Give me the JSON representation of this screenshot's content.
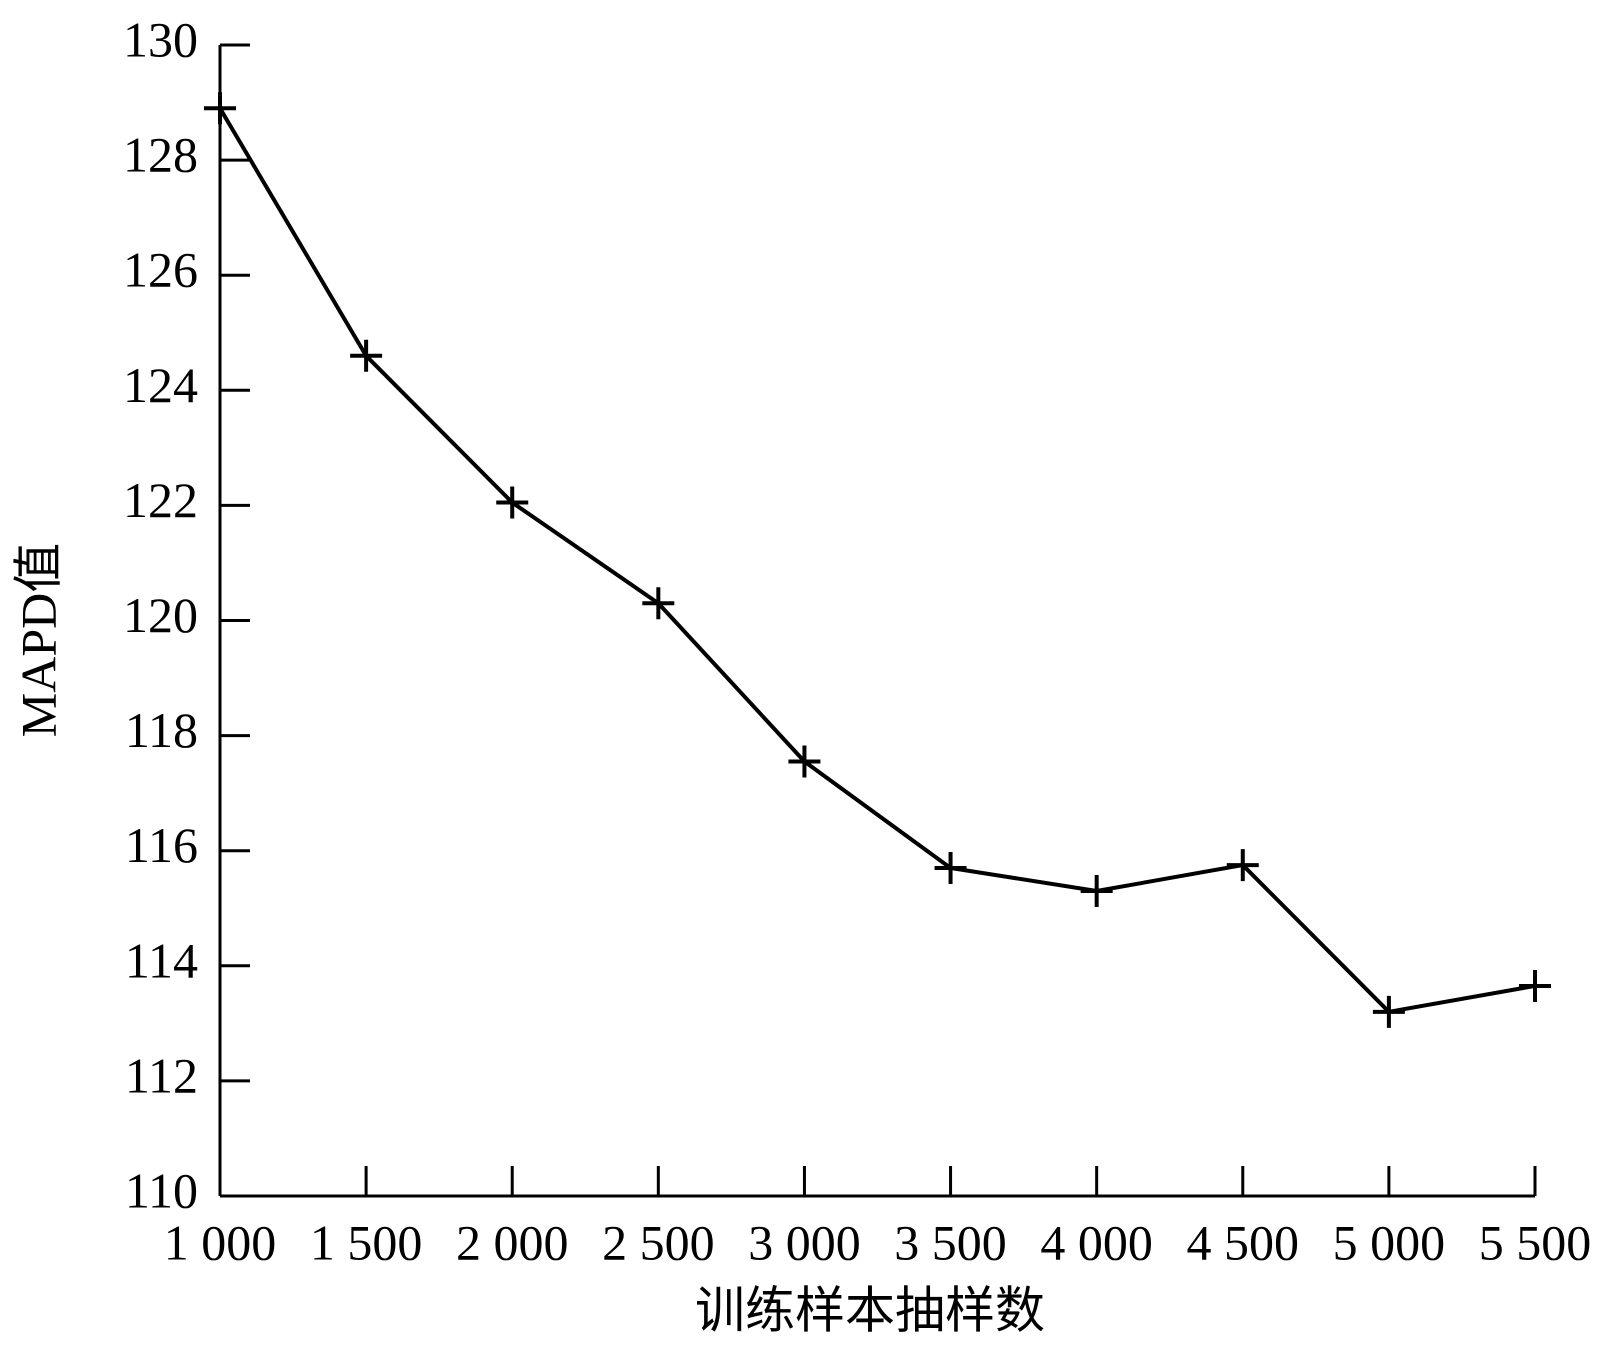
{
  "chart_data": {
    "type": "line",
    "x_label": "训练样本抽样数",
    "y_label": "MAPD值",
    "x": [
      1000,
      1500,
      2000,
      2500,
      3000,
      3500,
      4000,
      4500,
      5000,
      5500
    ],
    "series": [
      {
        "color": "#000000",
        "values": [
          128.9,
          124.6,
          122.05,
          120.3,
          117.55,
          115.7,
          115.3,
          115.75,
          113.2,
          113.65
        ]
      }
    ],
    "xlim": [
      1000,
      5500
    ],
    "xticks": [
      {
        "value": 1000,
        "label": "1 000"
      },
      {
        "value": 1500,
        "label": "1 500"
      },
      {
        "value": 2000,
        "label": "2 000"
      },
      {
        "value": 2500,
        "label": "2 500"
      },
      {
        "value": 3000,
        "label": "3 000"
      },
      {
        "value": 3500,
        "label": "3 500"
      },
      {
        "value": 4000,
        "label": "4 000"
      },
      {
        "value": 4500,
        "label": "4 500"
      },
      {
        "value": 5000,
        "label": "5 000"
      },
      {
        "value": 5500,
        "label": "5 500"
      }
    ],
    "ylim": [
      110,
      130
    ],
    "yticks": [
      110,
      112,
      114,
      116,
      118,
      120,
      122,
      124,
      126,
      128,
      130
    ],
    "grid": false
  }
}
